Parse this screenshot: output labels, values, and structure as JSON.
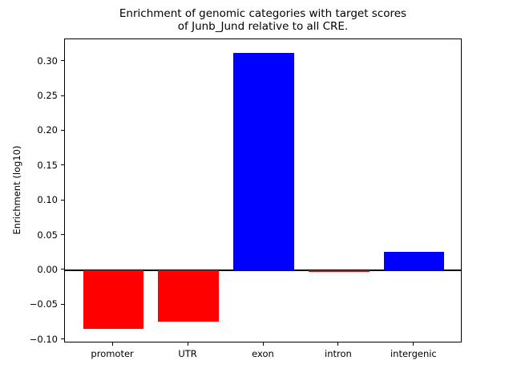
{
  "figure": {
    "title_line1": "Enrichment of genomic categories with target scores",
    "title_line2": "of Junb_Jund relative to all CRE.",
    "ylabel": "Enrichment (log10)"
  },
  "chart_data": {
    "type": "bar",
    "title": "Enrichment of genomic categories with target scores of Junb_Jund relative to all CRE.",
    "xlabel": "",
    "ylabel": "Enrichment (log10)",
    "categories": [
      "promoter",
      "UTR",
      "exon",
      "intron",
      "intergenic"
    ],
    "values": [
      -0.084,
      -0.074,
      0.312,
      -0.002,
      0.026
    ],
    "bar_colors": [
      "#ff0000",
      "#ff0000",
      "#0000ff",
      "#ff0000",
      "#0000ff"
    ],
    "positive_color": "#0000ff",
    "negative_color": "#ff0000",
    "bar_width": 0.8,
    "xlim": [
      -0.64,
      4.64
    ],
    "ylim": [
      -0.105,
      0.332
    ],
    "yticks": [
      -0.1,
      -0.05,
      0.0,
      0.05,
      0.1,
      0.15,
      0.2,
      0.25,
      0.3
    ],
    "ytick_labels": [
      "−0.10",
      "−0.05",
      "0.00",
      "0.05",
      "0.10",
      "0.15",
      "0.20",
      "0.25",
      "0.30"
    ],
    "grid": false,
    "legend": null,
    "zero_line": true,
    "axis_color": "#000000",
    "background_color": "#ffffff"
  }
}
